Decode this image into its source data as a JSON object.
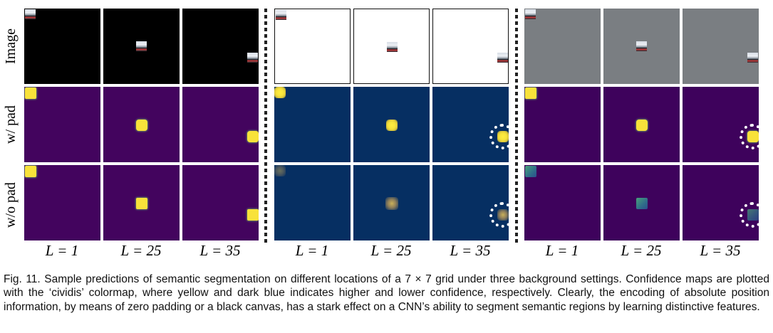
{
  "figure": {
    "row_labels": [
      "Image",
      "w/ pad",
      "w/o pad"
    ],
    "column_labels": [
      "L = 1",
      "L = 25",
      "L = 35",
      "L = 1",
      "L = 25",
      "L = 35",
      "L = 1",
      "L = 25",
      "L = 35"
    ],
    "background_settings": [
      "black",
      "white",
      "gray"
    ],
    "colors": {
      "black_canvas": "#000000",
      "white_canvas": "#ffffff",
      "gray_canvas": "#7a7e82",
      "low_confidence_purple": "#43045e",
      "low_confidence_navy": "#062f62",
      "high_confidence_yellow": "#f8e23a"
    }
  },
  "caption": "Fig. 11. Sample predictions of semantic segmentation on different locations of a 7 × 7 grid under three background settings. Confidence maps are plotted with the ‘cividis’ colormap, where yellow and dark blue indicates higher and lower confidence, respectively. Clearly, the encoding of absolute position information, by means of zero padding or a black canvas, has a stark effect on a CNN’s ability to segment semantic regions by learning distinctive features."
}
